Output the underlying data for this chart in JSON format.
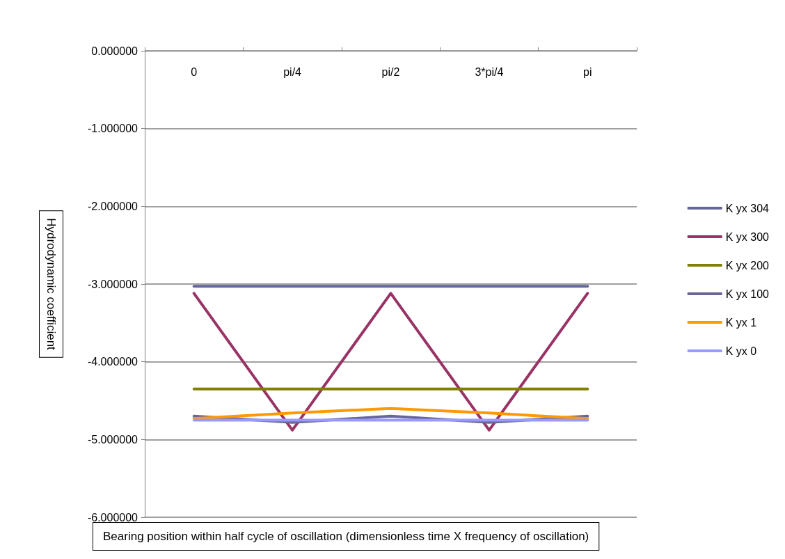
{
  "chart_data": {
    "type": "line",
    "xlabel": "Bearing position within half cycle of oscillation (dimensionless time X frequency of oscillation)",
    "ylabel": "Hydrodynamic coefficient",
    "categories": [
      "0",
      "pi/4",
      "pi/2",
      "3*pi/4",
      "pi"
    ],
    "series": [
      {
        "name": "K yx 304",
        "color": "#65679b",
        "values": [
          -3.03,
          -3.03,
          -3.03,
          -3.03,
          -3.03
        ]
      },
      {
        "name": "K yx 300",
        "color": "#993366",
        "values": [
          -3.12,
          -4.88,
          -3.12,
          -4.88,
          -3.12
        ]
      },
      {
        "name": "K yx 200",
        "color": "#808000",
        "values": [
          -4.35,
          -4.35,
          -4.35,
          -4.35,
          -4.35
        ]
      },
      {
        "name": "K yx 100",
        "color": "#666699",
        "values": [
          -4.7,
          -4.78,
          -4.7,
          -4.78,
          -4.7
        ]
      },
      {
        "name": "K yx 1",
        "color": "#ff9900",
        "values": [
          -4.73,
          -4.66,
          -4.6,
          -4.66,
          -4.73
        ]
      },
      {
        "name": "K yx 0",
        "color": "#9999ff",
        "values": [
          -4.75,
          -4.75,
          -4.75,
          -4.75,
          -4.75
        ]
      }
    ],
    "ylim": [
      -6,
      0
    ],
    "yticks": [
      {
        "value": -6,
        "label": "-6.000000"
      },
      {
        "value": -5,
        "label": "-5.000000"
      },
      {
        "value": -4,
        "label": "-4.000000"
      },
      {
        "value": -3,
        "label": "-3.000000"
      },
      {
        "value": -2,
        "label": "-2.000000"
      },
      {
        "value": -1,
        "label": "-1.000000"
      },
      {
        "value": 0,
        "label": "0.000000"
      }
    ],
    "grid": "y",
    "legend": "right",
    "marker": "none",
    "line_style": "solid"
  }
}
